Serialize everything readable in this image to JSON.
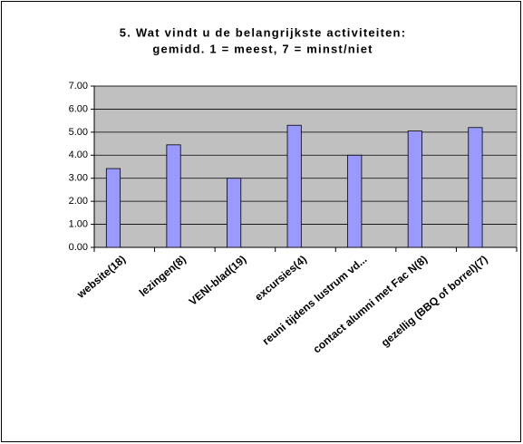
{
  "chart_data": {
    "type": "bar",
    "title": [
      "5. Wat vindt u de belangrijkste activiteiten:",
      "gemidd. 1 = meest, 7 = minst/niet"
    ],
    "categories": [
      "website(18)",
      "lezingen(8)",
      "VENI-blad(19)",
      "excursies(4)",
      "reuni tijdens lustrum vd...",
      "contact alumni met Fac N(8)",
      "gezellig (BBQ of borrel)(7)"
    ],
    "values": [
      3.42,
      4.45,
      3.0,
      5.3,
      4.0,
      5.05,
      5.2
    ],
    "color": "#9999ff",
    "ylim": [
      0,
      7
    ],
    "yticks": [
      {
        "value": 0,
        "label": "0.00"
      },
      {
        "value": 1,
        "label": "1.00"
      },
      {
        "value": 2,
        "label": "2.00"
      },
      {
        "value": 3,
        "label": "3.00"
      },
      {
        "value": 4,
        "label": "4.00"
      },
      {
        "value": 5,
        "label": "5.00"
      },
      {
        "value": 6,
        "label": "6.00"
      },
      {
        "value": 7,
        "label": "7.00"
      }
    ],
    "grid": true
  }
}
